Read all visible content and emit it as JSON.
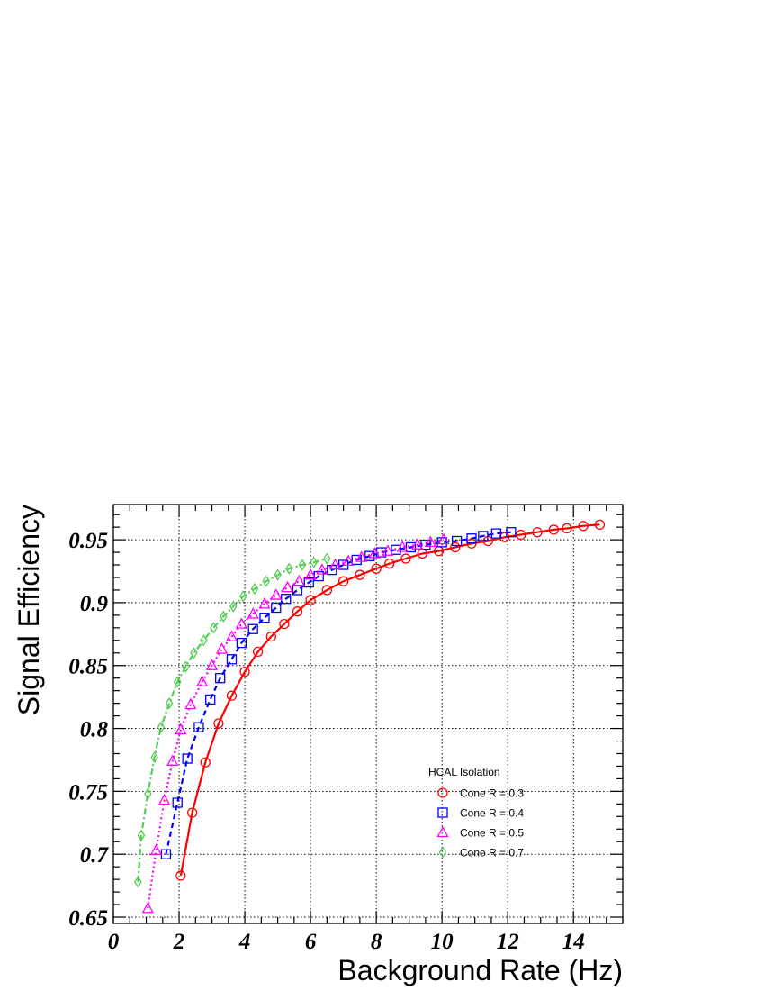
{
  "chart_data": {
    "type": "line",
    "title": "",
    "xlabel": "Background Rate (Hz)",
    "ylabel": "Signal Efficiency",
    "xlim": [
      0,
      15.5
    ],
    "ylim": [
      0.645,
      0.978
    ],
    "xticks": [
      0,
      2,
      4,
      6,
      8,
      10,
      12,
      14
    ],
    "xtick_labels": [
      "0",
      "2",
      "4",
      "6",
      "8",
      "10",
      "12",
      "14"
    ],
    "yticks": [
      0.65,
      0.7,
      0.75,
      0.8,
      0.85,
      0.9,
      0.95
    ],
    "ytick_labels": [
      "0.65",
      "0.7",
      "0.75",
      "0.8",
      "0.85",
      "0.9",
      "0.95"
    ],
    "grid": true,
    "legend": {
      "title": "HCAL Isolation",
      "position": "lower-right"
    },
    "series": [
      {
        "name": "Cone R = 0.3",
        "color": "#ff0000",
        "marker": "circle",
        "line_style": "solid",
        "x": [
          2.05,
          2.4,
          2.8,
          3.2,
          3.6,
          4.0,
          4.4,
          4.8,
          5.2,
          5.6,
          6.0,
          6.5,
          7.0,
          7.5,
          8.0,
          8.4,
          8.9,
          9.4,
          9.9,
          10.4,
          10.9,
          11.4,
          11.9,
          12.4,
          12.9,
          13.4,
          13.8,
          14.3,
          14.8
        ],
        "y": [
          0.683,
          0.733,
          0.773,
          0.804,
          0.826,
          0.845,
          0.861,
          0.873,
          0.883,
          0.893,
          0.902,
          0.91,
          0.917,
          0.922,
          0.927,
          0.931,
          0.935,
          0.939,
          0.941,
          0.944,
          0.947,
          0.949,
          0.952,
          0.954,
          0.956,
          0.958,
          0.959,
          0.961,
          0.962
        ]
      },
      {
        "name": "Cone R = 0.4",
        "color": "#0000ff",
        "marker": "square",
        "line_style": "dashed",
        "x": [
          1.6,
          1.95,
          2.25,
          2.6,
          2.95,
          3.25,
          3.6,
          3.9,
          4.25,
          4.6,
          4.95,
          5.25,
          5.6,
          5.95,
          6.25,
          6.65,
          7.0,
          7.4,
          7.8,
          8.15,
          8.6,
          9.05,
          9.5,
          10.0,
          10.45,
          10.9,
          11.25,
          11.65,
          12.1
        ],
        "y": [
          0.7,
          0.741,
          0.776,
          0.801,
          0.823,
          0.84,
          0.855,
          0.868,
          0.879,
          0.888,
          0.896,
          0.903,
          0.91,
          0.916,
          0.921,
          0.926,
          0.93,
          0.934,
          0.937,
          0.94,
          0.942,
          0.944,
          0.946,
          0.948,
          0.949,
          0.951,
          0.953,
          0.955,
          0.956
        ]
      },
      {
        "name": "Cone R = 0.5",
        "color": "#ff00ff",
        "marker": "triangle",
        "line_style": "dotted",
        "x": [
          1.05,
          1.3,
          1.55,
          1.8,
          2.05,
          2.35,
          2.7,
          3.0,
          3.3,
          3.6,
          3.9,
          4.25,
          4.6,
          4.95,
          5.3,
          5.65,
          6.0,
          6.35,
          6.75,
          7.15,
          7.55,
          7.95,
          8.35,
          8.8,
          9.25,
          9.65,
          10.05
        ],
        "y": [
          0.657,
          0.703,
          0.743,
          0.774,
          0.799,
          0.819,
          0.837,
          0.85,
          0.863,
          0.873,
          0.883,
          0.891,
          0.899,
          0.906,
          0.912,
          0.917,
          0.922,
          0.926,
          0.93,
          0.933,
          0.936,
          0.939,
          0.941,
          0.944,
          0.946,
          0.948,
          0.95
        ]
      },
      {
        "name": "Cone R = 0.7",
        "color": "#55cc55",
        "marker": "diamond",
        "line_style": "dash-dot",
        "x": [
          0.75,
          0.85,
          1.05,
          1.25,
          1.45,
          1.7,
          1.95,
          2.2,
          2.45,
          2.75,
          3.05,
          3.35,
          3.65,
          3.95,
          4.3,
          4.65,
          5.0,
          5.35,
          5.75,
          6.1,
          6.5
        ],
        "y": [
          0.678,
          0.715,
          0.748,
          0.777,
          0.801,
          0.82,
          0.837,
          0.849,
          0.86,
          0.87,
          0.88,
          0.889,
          0.897,
          0.905,
          0.911,
          0.917,
          0.922,
          0.927,
          0.93,
          0.932,
          0.935
        ]
      }
    ]
  }
}
